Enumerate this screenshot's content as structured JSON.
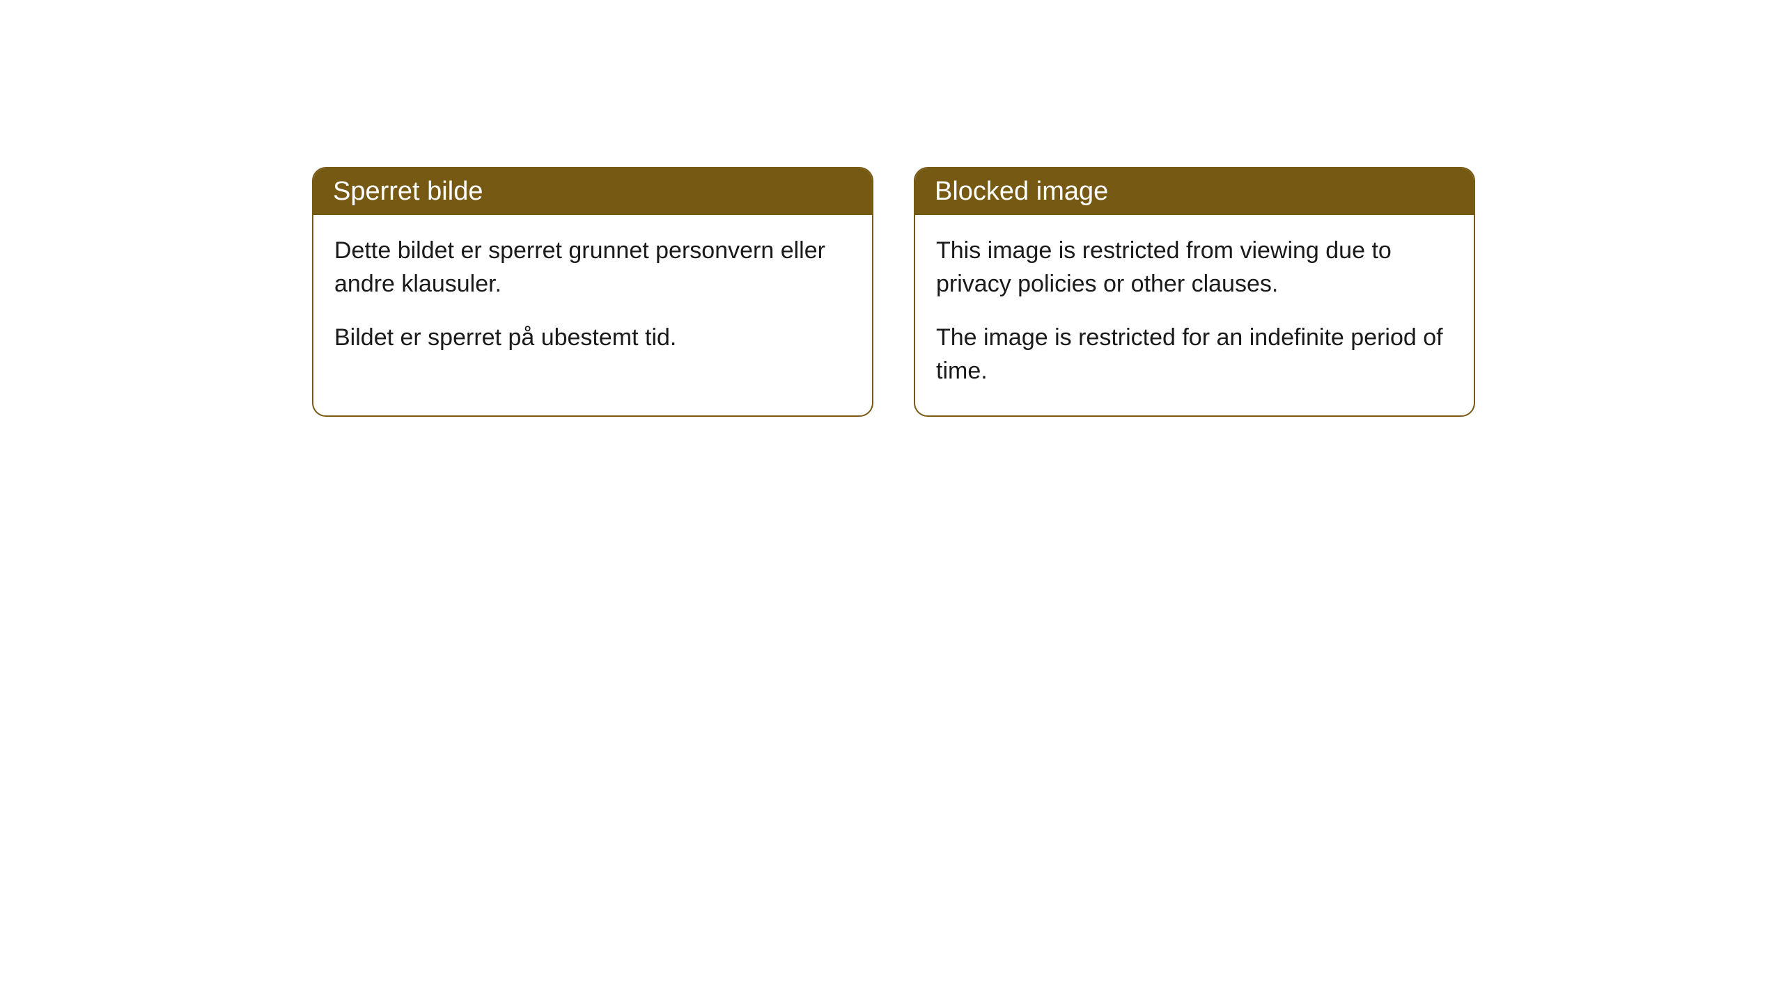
{
  "cards": [
    {
      "title": "Sperret bilde",
      "paragraph1": "Dette bildet er sperret grunnet personvern eller andre klausuler.",
      "paragraph2": "Bildet er sperret på ubestemt tid."
    },
    {
      "title": "Blocked image",
      "paragraph1": "This image is restricted from viewing due to privacy policies or other clauses.",
      "paragraph2": "The image is restricted for an indefinite period of time."
    }
  ],
  "styling": {
    "header_bg_color": "#765912",
    "header_text_color": "#ffffff",
    "border_color": "#765912",
    "body_bg_color": "#ffffff",
    "body_text_color": "#1a1a1a",
    "border_radius": 20,
    "title_fontsize": 38,
    "body_fontsize": 34
  }
}
